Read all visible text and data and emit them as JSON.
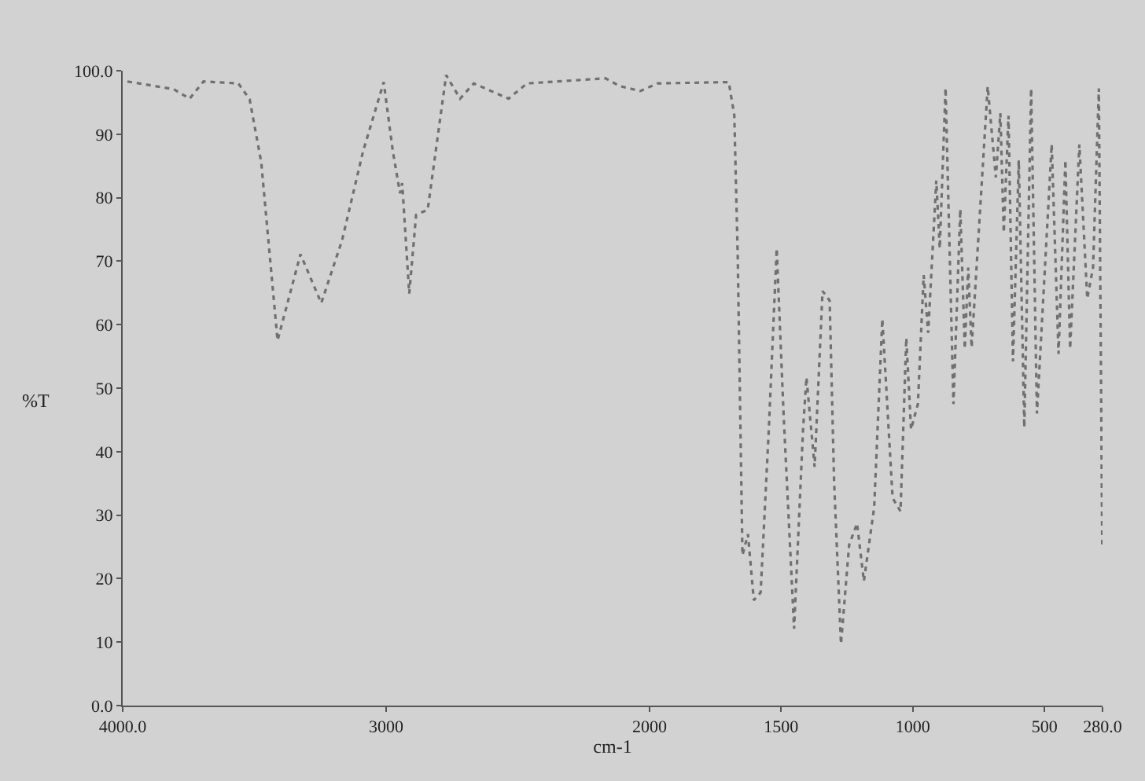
{
  "chart_data": {
    "type": "line",
    "xlabel": "cm-1",
    "ylabel": "%T",
    "x": [
      3982,
      3807,
      3746,
      3693,
      3561,
      3518,
      3474,
      3412,
      3325,
      3246,
      3167,
      3088,
      3009,
      2974,
      2947,
      2939,
      2912,
      2886,
      2842,
      2772,
      2719,
      2667,
      2535,
      2465,
      2167,
      2114,
      2035,
      1970,
      1708,
      1699,
      1678,
      1665,
      1647,
      1626,
      1604,
      1578,
      1547,
      1517,
      1491,
      1451,
      1417,
      1404,
      1373,
      1343,
      1316,
      1299,
      1273,
      1242,
      1212,
      1186,
      1147,
      1116,
      1077,
      1047,
      1025,
      1007,
      981,
      959,
      942,
      911,
      898,
      876,
      846,
      820,
      803,
      790,
      777,
      716,
      685,
      668,
      655,
      637,
      620,
      598,
      577,
      551,
      529,
      473,
      447,
      421,
      403,
      368,
      338,
      316,
      294,
      281
    ],
    "series": [
      {
        "color": "#707070",
        "values": [
          98.3,
          97.1,
          95.6,
          98.3,
          98,
          95.5,
          85.6,
          57.5,
          71.1,
          63.4,
          73.3,
          87.2,
          98.2,
          87.2,
          80.7,
          82.3,
          64.9,
          77.3,
          78.1,
          99.3,
          95.6,
          98,
          95.6,
          98,
          98.8,
          97.6,
          96.8,
          98,
          98.2,
          98.2,
          93,
          70.8,
          23.7,
          27,
          16.6,
          17.8,
          43.5,
          72,
          46,
          12.1,
          43.5,
          51.7,
          37.6,
          65.3,
          63.8,
          35.2,
          9.7,
          25.3,
          28.7,
          19.6,
          31.2,
          60.9,
          32.7,
          30.6,
          57.9,
          43.5,
          47.5,
          67.8,
          58.7,
          82.7,
          72,
          97.3,
          47.5,
          78.2,
          56.2,
          69,
          56.4,
          97.5,
          83.2,
          93.3,
          74.5,
          92.9,
          54.2,
          85.9,
          43.8,
          97.2,
          46,
          88.4,
          55.4,
          85.9,
          56.2,
          88.4,
          64.1,
          69,
          97.2,
          25
        ]
      }
    ],
    "xlim": [
      4000,
      280
    ],
    "xticks": [
      {
        "value": 4000,
        "label": "4000.0"
      },
      3000,
      2000,
      1500,
      1000,
      500,
      {
        "value": 280,
        "label": "280.0"
      }
    ],
    "ylim": [
      0,
      100
    ],
    "yticks": [
      {
        "value": 0,
        "label": "0.0"
      },
      10,
      20,
      30,
      40,
      50,
      60,
      70,
      80,
      90,
      {
        "value": 100,
        "label": "100.0"
      }
    ],
    "line_style": "dotted",
    "marker": "none"
  }
}
